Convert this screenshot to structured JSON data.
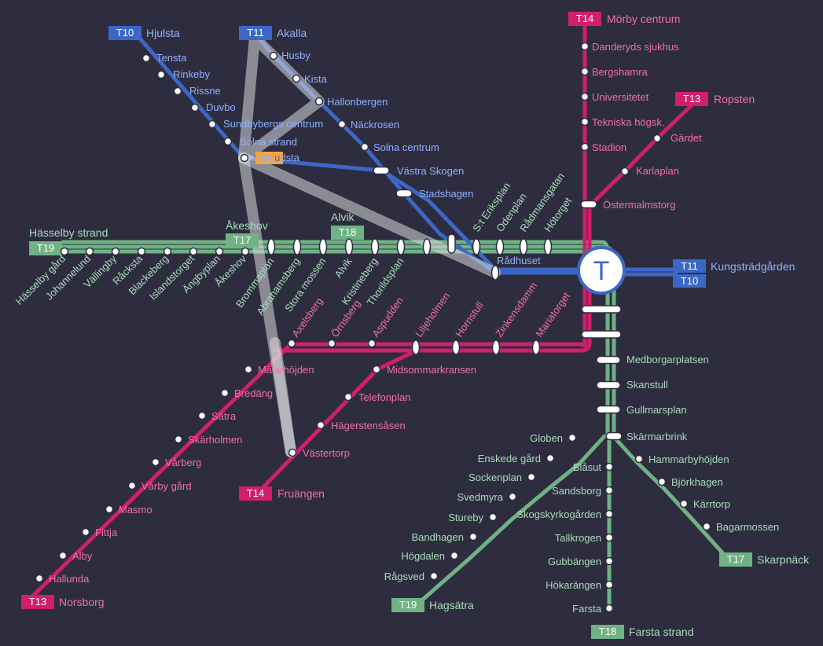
{
  "colors": {
    "background": "#2e2d3f",
    "green": "#6fb284",
    "red": "#d11f6c",
    "blue": "#3d67c6",
    "green_text": "#a8dcb8",
    "red_text": "#ef6fa4",
    "blue_text": "#8fb1ff",
    "highlight": "#f2a444",
    "route_overlay": "#d8d8de"
  },
  "central_hub": {
    "label": "T"
  },
  "terminals": [
    {
      "line": "T10",
      "name": "Hjulsta"
    },
    {
      "line": "T11",
      "name": "Akalla"
    },
    {
      "line": "T14",
      "name": "Mörby centrum"
    },
    {
      "line": "T13",
      "name": "Ropsten"
    },
    {
      "line": "T19",
      "name": "Hässelby strand"
    },
    {
      "line": "T17",
      "name": "Åkeshov"
    },
    {
      "line": "T18",
      "name": "Alvik"
    },
    {
      "line": "T11",
      "name": "Kungsträdgården"
    },
    {
      "line": "T10",
      "name": ""
    },
    {
      "line": "T14",
      "name": "Fruängen"
    },
    {
      "line": "T13",
      "name": "Norsborg"
    },
    {
      "line": "T19",
      "name": "Hagsätra"
    },
    {
      "line": "T18",
      "name": "Farsta strand"
    },
    {
      "line": "T17",
      "name": "Skarpnäck"
    }
  ],
  "stations": {
    "blue_north": [
      "Tensta",
      "Rinkeby",
      "Rissne",
      "Duvbo",
      "Sundbybergs centrum",
      "Solna strand",
      "Husby",
      "Kista",
      "Hallonbergen",
      "Näckrosen",
      "Solna centrum",
      "Västra Skogen",
      "Stadshagen",
      "Rådhuset"
    ],
    "highlighted_station": {
      "before": "Huv",
      "highlight": "u",
      "after": "dsta"
    },
    "red_north": [
      "Danderyds sjukhus",
      "Bergshamra",
      "Universitetet",
      "Tekniska högsk.",
      "Stadion",
      "Gärdet",
      "Karlaplan",
      "Östermalmstorg"
    ],
    "green_west": [
      "Hässelby gård",
      "Johannelund",
      "Vällingby",
      "Råcksta",
      "Blackeberg",
      "Islandstorget",
      "Ängbyplan",
      "Åkeshov",
      "Brommaplan",
      "Abrahamsberg",
      "Stora mossen",
      "Alvik",
      "Kristineberg",
      "Thorildsplan"
    ],
    "city_stations": [
      "S:t Eriksplan",
      "Odenplan",
      "Rådmansgatan",
      "Hötorget"
    ],
    "south_green": [
      "Medborgarplatsen",
      "Skanstull",
      "Gullmarsplan",
      "Skärmarbrink"
    ],
    "red_southwest": [
      "Axelsberg",
      "Örnsberg",
      "Aspudden",
      "Liljeholmen",
      "Hornstull",
      "Zinkensdamm",
      "Mariatorget"
    ],
    "red_norsborg": [
      "Mälarhöjden",
      "Bredäng",
      "Sätra",
      "Skärholmen",
      "Vårberg",
      "Vårby gård",
      "Masmo",
      "Fittja",
      "Alby",
      "Hallunda"
    ],
    "red_fruangen": [
      "Midsommarkransen",
      "Telefonplan",
      "Hägerstensåsen",
      "Västertorp"
    ],
    "green_hagsatra": [
      "Globen",
      "Enskede gård",
      "Sockenplan",
      "Svedmyra",
      "Stureby",
      "Bandhagen",
      "Högdalen",
      "Rågsved"
    ],
    "green_farsta": [
      "Blåsut",
      "Sandsborg",
      "Skogskyrkogården",
      "Tallkrogen",
      "Gubbängen",
      "Hökarängen",
      "Farsta"
    ],
    "green_skarpnack": [
      "Hammarbyhöjden",
      "Björkhagen",
      "Kärrtorp",
      "Bagarmossen"
    ]
  }
}
